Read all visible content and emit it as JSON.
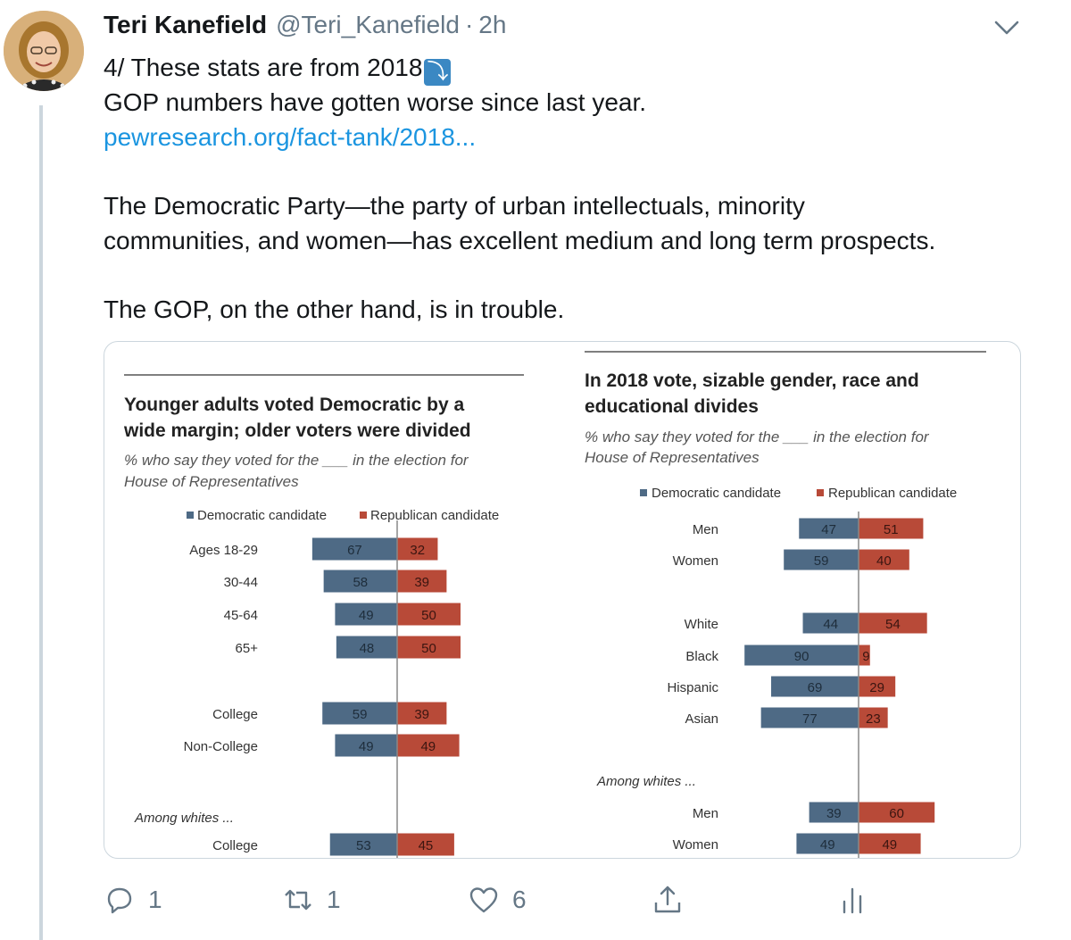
{
  "tweet": {
    "author_name": "Teri Kanefield",
    "handle": "@Teri_Kanefield",
    "separator": "·",
    "time": "2h",
    "line1": "4/ These stats are from 2018",
    "line1_emoji": "⤵",
    "line2": "GOP numbers have gotten worse since last year.",
    "link": "pewresearch.org/fact-tank/2018...",
    "para2_line1": "The Democratic Party—the party of urban intellectuals, minority",
    "para2_line2": "communities, and women—has excellent medium and long term prospects.",
    "para3": "The GOP, on the other hand, is in trouble."
  },
  "actions": {
    "reply_count": "1",
    "retweet_count": "1",
    "like_count": "6"
  },
  "colors": {
    "democratic": "#4e6a85",
    "republican": "#b84a38",
    "link": "#1b95e0"
  },
  "chart_data": [
    {
      "type": "bar",
      "orientation": "diverging-horizontal",
      "title_line1": "Younger adults voted Democratic by a",
      "title_line2": "wide margin; older voters were divided",
      "subtitle_line1": "% who say they voted for the ___ in the election for",
      "subtitle_line2": "House of Representatives",
      "legend": [
        "Democratic candidate",
        "Republican candidate"
      ],
      "note": "Among whites ...",
      "categories": [
        "Ages 18-29",
        "30-44",
        "45-64",
        "65+",
        "College",
        "Non-College",
        "College"
      ],
      "series": [
        {
          "name": "Democratic candidate",
          "values": [
            67,
            58,
            49,
            48,
            59,
            49,
            53
          ]
        },
        {
          "name": "Republican candidate",
          "values": [
            32,
            39,
            50,
            50,
            39,
            49,
            45
          ]
        }
      ]
    },
    {
      "type": "bar",
      "orientation": "diverging-horizontal",
      "title_line1": "In 2018 vote, sizable gender, race and",
      "title_line2": "educational divides",
      "subtitle_line1": "% who say they voted for the ___ in the election for",
      "subtitle_line2": "House of Representatives",
      "legend": [
        "Democratic candidate",
        "Republican candidate"
      ],
      "note": "Among whites ...",
      "categories": [
        "Men",
        "Women",
        "White",
        "Black",
        "Hispanic",
        "Asian",
        "Men",
        "Women"
      ],
      "series": [
        {
          "name": "Democratic candidate",
          "values": [
            47,
            59,
            44,
            90,
            69,
            77,
            39,
            49
          ]
        },
        {
          "name": "Republican candidate",
          "values": [
            51,
            40,
            54,
            9,
            29,
            23,
            60,
            49
          ]
        }
      ]
    }
  ]
}
